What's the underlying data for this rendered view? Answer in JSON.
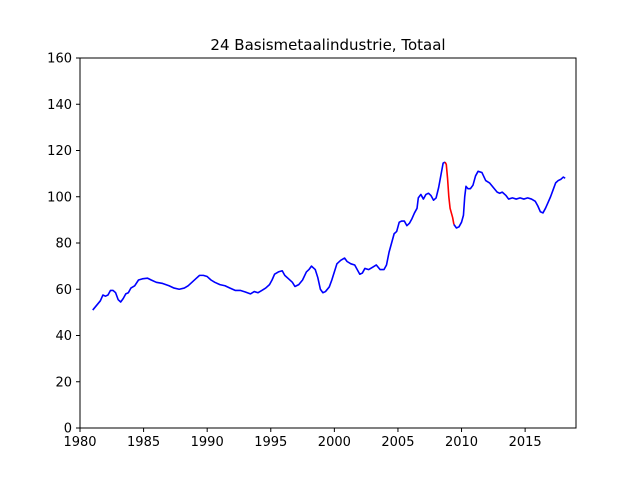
{
  "chart_data": {
    "type": "line",
    "title": "24 Basismetaalindustrie, Totaal",
    "xlabel": "",
    "ylabel": "",
    "xlim": [
      1980,
      2019
    ],
    "ylim": [
      0,
      160
    ],
    "x_ticks": [
      1980,
      1985,
      1990,
      1995,
      2000,
      2005,
      2010,
      2015
    ],
    "y_ticks": [
      0,
      20,
      40,
      60,
      80,
      100,
      120,
      140,
      160
    ],
    "grid": false,
    "legend": "none",
    "series": [
      {
        "color": "#0000ff",
        "points": [
          [
            1981.0,
            51
          ],
          [
            1981.3,
            53
          ],
          [
            1981.6,
            55
          ],
          [
            1981.8,
            57.5
          ],
          [
            1982.0,
            57
          ],
          [
            1982.2,
            57.5
          ],
          [
            1982.4,
            59.5
          ],
          [
            1982.6,
            59.5
          ],
          [
            1982.8,
            58.5
          ],
          [
            1983.0,
            55.5
          ],
          [
            1983.2,
            54.5
          ],
          [
            1983.4,
            56
          ],
          [
            1983.6,
            58
          ],
          [
            1983.8,
            58.5
          ],
          [
            1984.0,
            60.5
          ],
          [
            1984.3,
            61.5
          ],
          [
            1984.6,
            64
          ],
          [
            1984.9,
            64.5
          ],
          [
            1985.3,
            64.8
          ],
          [
            1985.6,
            64
          ],
          [
            1986.0,
            63
          ],
          [
            1986.5,
            62.5
          ],
          [
            1987.0,
            61.5
          ],
          [
            1987.4,
            60.5
          ],
          [
            1987.8,
            60
          ],
          [
            1988.2,
            60.5
          ],
          [
            1988.5,
            61.5
          ],
          [
            1988.8,
            63
          ],
          [
            1989.1,
            64.5
          ],
          [
            1989.4,
            66
          ],
          [
            1989.7,
            66
          ],
          [
            1990.0,
            65.5
          ],
          [
            1990.3,
            64
          ],
          [
            1990.6,
            63
          ],
          [
            1991.0,
            62
          ],
          [
            1991.4,
            61.5
          ],
          [
            1991.8,
            60.5
          ],
          [
            1992.2,
            59.5
          ],
          [
            1992.6,
            59.5
          ],
          [
            1993.0,
            58.8
          ],
          [
            1993.4,
            58
          ],
          [
            1993.7,
            59
          ],
          [
            1994.0,
            58.5
          ],
          [
            1994.3,
            59.5
          ],
          [
            1994.6,
            60.5
          ],
          [
            1994.9,
            62
          ],
          [
            1995.1,
            64
          ],
          [
            1995.3,
            66.5
          ],
          [
            1995.6,
            67.5
          ],
          [
            1995.9,
            68
          ],
          [
            1996.1,
            66
          ],
          [
            1996.4,
            64.5
          ],
          [
            1996.7,
            63
          ],
          [
            1996.9,
            61.2
          ],
          [
            1997.2,
            62
          ],
          [
            1997.5,
            64
          ],
          [
            1997.8,
            67.5
          ],
          [
            1998.0,
            68.5
          ],
          [
            1998.2,
            70
          ],
          [
            1998.5,
            68.5
          ],
          [
            1998.7,
            65
          ],
          [
            1998.9,
            60
          ],
          [
            1999.1,
            58.5
          ],
          [
            1999.3,
            59
          ],
          [
            1999.6,
            61
          ],
          [
            1999.8,
            64
          ],
          [
            2000.0,
            67.5
          ],
          [
            2000.2,
            71
          ],
          [
            2000.5,
            72.5
          ],
          [
            2000.8,
            73.5
          ],
          [
            2001.0,
            72
          ],
          [
            2001.3,
            71
          ],
          [
            2001.6,
            70.5
          ],
          [
            2001.8,
            68.5
          ],
          [
            2002.0,
            66.5
          ],
          [
            2002.2,
            67
          ],
          [
            2002.4,
            69
          ],
          [
            2002.7,
            68.5
          ],
          [
            2003.0,
            69.5
          ],
          [
            2003.3,
            70.5
          ],
          [
            2003.6,
            68.5
          ],
          [
            2003.9,
            68.5
          ],
          [
            2004.1,
            70.5
          ],
          [
            2004.3,
            76
          ],
          [
            2004.5,
            80
          ],
          [
            2004.7,
            84
          ],
          [
            2004.9,
            85
          ],
          [
            2005.1,
            89
          ],
          [
            2005.3,
            89.5
          ],
          [
            2005.5,
            89.5
          ],
          [
            2005.7,
            87.5
          ],
          [
            2005.9,
            88.5
          ],
          [
            2006.1,
            90.5
          ],
          [
            2006.3,
            93
          ],
          [
            2006.5,
            95
          ],
          [
            2006.6,
            99.5
          ],
          [
            2006.8,
            101
          ],
          [
            2007.0,
            99
          ],
          [
            2007.2,
            101
          ],
          [
            2007.4,
            101.5
          ],
          [
            2007.6,
            100.5
          ],
          [
            2007.8,
            98.5
          ],
          [
            2008.0,
            99.5
          ],
          [
            2008.2,
            104
          ],
          [
            2008.4,
            110
          ],
          [
            2008.55,
            114.5
          ],
          [
            2008.7,
            115
          ]
        ]
      },
      {
        "color": "#ff0000",
        "points": [
          [
            2008.7,
            115
          ],
          [
            2008.8,
            114
          ],
          [
            2008.9,
            108
          ],
          [
            2009.0,
            100
          ],
          [
            2009.1,
            95
          ],
          [
            2009.2,
            93
          ],
          [
            2009.3,
            91
          ],
          [
            2009.4,
            88
          ]
        ]
      },
      {
        "color": "#0000ff",
        "points": [
          [
            2009.4,
            88
          ],
          [
            2009.6,
            86.5
          ],
          [
            2009.8,
            87
          ],
          [
            2010.0,
            89
          ],
          [
            2010.15,
            92
          ],
          [
            2010.25,
            100
          ],
          [
            2010.35,
            104.5
          ],
          [
            2010.5,
            103.5
          ],
          [
            2010.7,
            103.5
          ],
          [
            2010.9,
            105
          ],
          [
            2011.1,
            109
          ],
          [
            2011.3,
            111
          ],
          [
            2011.6,
            110.5
          ],
          [
            2011.9,
            107
          ],
          [
            2012.2,
            106
          ],
          [
            2012.5,
            104
          ],
          [
            2012.8,
            102
          ],
          [
            2013.0,
            101.5
          ],
          [
            2013.2,
            102
          ],
          [
            2013.5,
            100.5
          ],
          [
            2013.7,
            99
          ],
          [
            2014.0,
            99.5
          ],
          [
            2014.3,
            99
          ],
          [
            2014.6,
            99.5
          ],
          [
            2014.9,
            99
          ],
          [
            2015.2,
            99.5
          ],
          [
            2015.5,
            99
          ],
          [
            2015.8,
            98
          ],
          [
            2016.0,
            96
          ],
          [
            2016.2,
            93.5
          ],
          [
            2016.4,
            93
          ],
          [
            2016.6,
            95
          ],
          [
            2016.8,
            97.5
          ],
          [
            2017.0,
            100
          ],
          [
            2017.2,
            103
          ],
          [
            2017.4,
            106
          ],
          [
            2017.6,
            107
          ],
          [
            2017.8,
            107.5
          ],
          [
            2018.0,
            108.5
          ],
          [
            2018.15,
            108
          ]
        ]
      }
    ]
  }
}
